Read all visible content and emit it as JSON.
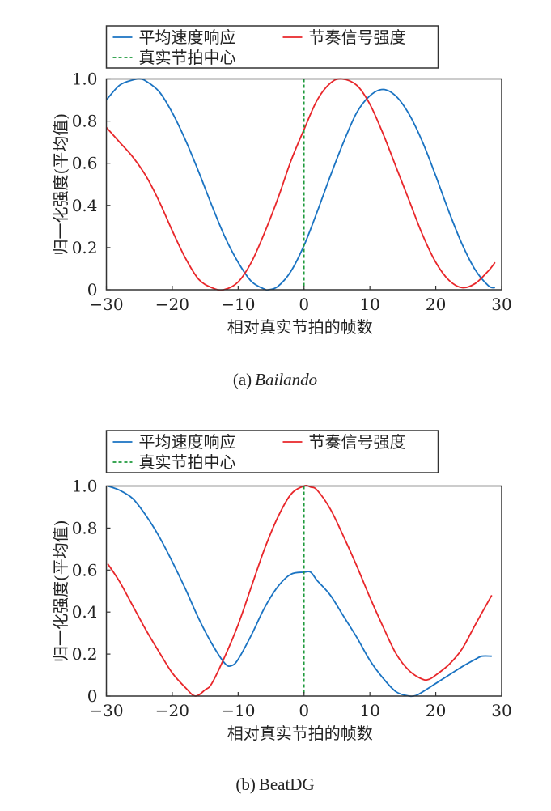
{
  "colors": {
    "blue": "#1a73c2",
    "red": "#e8262a",
    "green": "#1e9a3c",
    "axis": "#333333"
  },
  "chart_data": [
    {
      "type": "line",
      "caption_prefix": "(a)",
      "caption_name": "Bailando",
      "xlabel": "相对真实节拍的帧数",
      "ylabel": "归一化强度(平均值)",
      "xlim": [
        -30,
        30
      ],
      "ylim": [
        0,
        1.0
      ],
      "xticks": [
        -30,
        -20,
        -10,
        0,
        10,
        20,
        30
      ],
      "yticks": [
        "0",
        "0.2",
        "0.4",
        "0.6",
        "0.8",
        "1.0"
      ],
      "legend": [
        "平均速度响应",
        "节奏信号强度",
        "真实节拍中心"
      ],
      "legend_position": "top",
      "vline_x": 0,
      "series": [
        {
          "name": "平均速度响应",
          "x": [
            -30,
            -28,
            -26,
            -25,
            -24,
            -22,
            -20,
            -18,
            -16,
            -14,
            -12,
            -10,
            -8,
            -6,
            -5.4,
            -4,
            -2,
            0,
            2,
            4,
            6,
            8,
            10,
            12,
            14,
            16,
            18,
            20,
            22,
            24,
            26,
            28,
            29
          ],
          "y": [
            0.9,
            0.97,
            0.995,
            1.0,
            0.99,
            0.94,
            0.84,
            0.71,
            0.56,
            0.4,
            0.25,
            0.13,
            0.04,
            0.003,
            0,
            0.015,
            0.087,
            0.21,
            0.37,
            0.54,
            0.7,
            0.84,
            0.92,
            0.95,
            0.917,
            0.83,
            0.7,
            0.54,
            0.37,
            0.216,
            0.094,
            0.019,
            0.01
          ]
        },
        {
          "name": "节奏信号强度",
          "x": [
            -30,
            -28,
            -26,
            -24,
            -22,
            -20,
            -18,
            -16,
            -14,
            -12.2,
            -10,
            -8,
            -6,
            -4,
            -2,
            0,
            2,
            4,
            5.7,
            8,
            10,
            12,
            14,
            16,
            18,
            20,
            22,
            24,
            26,
            28,
            29
          ],
          "y": [
            0.77,
            0.7,
            0.63,
            0.54,
            0.42,
            0.28,
            0.15,
            0.05,
            0.01,
            0,
            0.037,
            0.13,
            0.27,
            0.43,
            0.61,
            0.76,
            0.9,
            0.98,
            1.0,
            0.97,
            0.88,
            0.74,
            0.58,
            0.42,
            0.26,
            0.13,
            0.045,
            0.01,
            0.03,
            0.09,
            0.13
          ]
        }
      ]
    },
    {
      "type": "line",
      "caption_prefix": "(b)",
      "caption_name": "BeatDG",
      "xlabel": "相对真实节拍的帧数",
      "ylabel": "归一化强度(平均值)",
      "xlim": [
        -30,
        30
      ],
      "ylim": [
        0,
        1.0
      ],
      "xticks": [
        -30,
        -20,
        -10,
        0,
        10,
        20,
        30
      ],
      "yticks": [
        "0",
        "0.2",
        "0.4",
        "0.6",
        "0.8",
        "1.0"
      ],
      "legend": [
        "平均速度响应",
        "节奏信号强度",
        "真实节拍中心"
      ],
      "legend_position": "top",
      "vline_x": 0,
      "series": [
        {
          "name": "平均速度响应",
          "x": [
            -29.8,
            -28,
            -26,
            -24,
            -22,
            -20,
            -18,
            -16,
            -14,
            -12,
            -11,
            -10,
            -8,
            -6,
            -4,
            -2,
            0,
            1,
            2,
            4,
            6,
            8,
            10,
            12,
            14,
            16,
            17,
            18,
            20,
            22,
            24,
            26,
            27,
            28.5
          ],
          "y": [
            1.0,
            0.98,
            0.94,
            0.86,
            0.76,
            0.64,
            0.51,
            0.37,
            0.25,
            0.155,
            0.145,
            0.175,
            0.29,
            0.42,
            0.52,
            0.58,
            0.59,
            0.59,
            0.55,
            0.48,
            0.38,
            0.28,
            0.17,
            0.085,
            0.02,
            0,
            0.003,
            0.02,
            0.06,
            0.1,
            0.14,
            0.175,
            0.19,
            0.19
          ]
        },
        {
          "name": "节奏信号强度",
          "x": [
            -29.8,
            -28,
            -26,
            -24,
            -22,
            -20,
            -18,
            -16.5,
            -15,
            -14,
            -12,
            -10,
            -8,
            -6,
            -4,
            -2,
            0,
            1,
            2,
            4,
            6,
            8,
            10,
            12,
            14,
            16,
            18,
            19,
            20,
            22,
            24,
            26,
            28.5
          ],
          "y": [
            0.63,
            0.545,
            0.43,
            0.315,
            0.21,
            0.11,
            0.04,
            0,
            0.03,
            0.06,
            0.19,
            0.34,
            0.52,
            0.7,
            0.85,
            0.96,
            1.0,
            0.995,
            0.98,
            0.89,
            0.76,
            0.62,
            0.47,
            0.33,
            0.2,
            0.12,
            0.08,
            0.08,
            0.1,
            0.15,
            0.225,
            0.34,
            0.48
          ]
        }
      ]
    }
  ]
}
